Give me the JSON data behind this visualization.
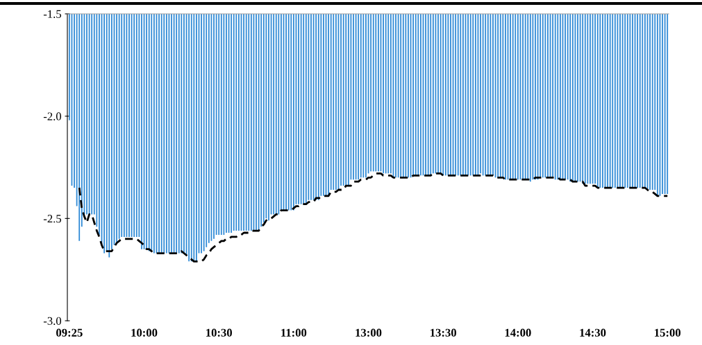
{
  "chart_data": {
    "type": "bar",
    "categories": [
      "09:25",
      null,
      null,
      null,
      null,
      null,
      null,
      null,
      null,
      null,
      null,
      null,
      null,
      null,
      null,
      null,
      null,
      null,
      null,
      null,
      null,
      null,
      null,
      null,
      null,
      null,
      null,
      null,
      null,
      null,
      "10:00",
      null,
      null,
      null,
      null,
      null,
      null,
      null,
      null,
      null,
      null,
      null,
      null,
      null,
      null,
      null,
      null,
      null,
      null,
      null,
      null,
      null,
      null,
      null,
      null,
      null,
      null,
      null,
      null,
      null,
      "10:30",
      null,
      null,
      null,
      null,
      null,
      null,
      null,
      null,
      null,
      null,
      null,
      null,
      null,
      null,
      null,
      null,
      null,
      null,
      null,
      null,
      null,
      null,
      null,
      null,
      null,
      null,
      null,
      null,
      null,
      "11:00",
      null,
      null,
      null,
      null,
      null,
      null,
      null,
      null,
      null,
      null,
      null,
      null,
      null,
      null,
      null,
      null,
      null,
      null,
      null,
      null,
      null,
      null,
      null,
      null,
      null,
      null,
      null,
      null,
      null,
      "13:00",
      null,
      null,
      null,
      null,
      null,
      null,
      null,
      null,
      null,
      null,
      null,
      null,
      null,
      null,
      null,
      null,
      null,
      null,
      null,
      null,
      null,
      null,
      null,
      null,
      null,
      null,
      null,
      null,
      null,
      "13:30",
      null,
      null,
      null,
      null,
      null,
      null,
      null,
      null,
      null,
      null,
      null,
      null,
      null,
      null,
      null,
      null,
      null,
      null,
      null,
      null,
      null,
      null,
      null,
      null,
      null,
      null,
      null,
      null,
      null,
      "14:00",
      null,
      null,
      null,
      null,
      null,
      null,
      null,
      null,
      null,
      null,
      null,
      null,
      null,
      null,
      null,
      null,
      null,
      null,
      null,
      null,
      null,
      null,
      null,
      null,
      null,
      null,
      null,
      null,
      null,
      "14:30",
      null,
      null,
      null,
      null,
      null,
      null,
      null,
      null,
      null,
      null,
      null,
      null,
      null,
      null,
      null,
      null,
      null,
      null,
      null,
      null,
      null,
      null,
      null,
      null,
      null,
      null,
      null,
      null,
      null,
      "15:00"
    ],
    "series": [
      {
        "color": "#2f8ad6",
        "values": [
          -2.02,
          -2.34,
          -2.35,
          -2.44,
          -2.61,
          -2.54,
          -2.48,
          -2.48,
          -2.48,
          -2.48,
          -2.48,
          -2.54,
          -2.58,
          -2.63,
          -2.67,
          -2.66,
          -2.69,
          -2.65,
          -2.63,
          -2.62,
          -2.6,
          -2.59,
          -2.59,
          -2.59,
          -2.59,
          -2.59,
          -2.59,
          -2.59,
          -2.59,
          -2.65,
          -2.65,
          -2.65,
          -2.66,
          -2.66,
          -2.67,
          -2.67,
          -2.67,
          -2.67,
          -2.67,
          -2.67,
          -2.67,
          -2.67,
          -2.67,
          -2.67,
          -2.67,
          -2.67,
          -2.67,
          -2.68,
          -2.71,
          -2.71,
          -2.71,
          -2.71,
          -2.67,
          -2.67,
          -2.66,
          -2.64,
          -2.62,
          -2.61,
          -2.6,
          -2.58,
          -2.58,
          -2.58,
          -2.58,
          -2.57,
          -2.57,
          -2.57,
          -2.56,
          -2.56,
          -2.56,
          -2.56,
          -2.56,
          -2.56,
          -2.56,
          -2.56,
          -2.56,
          -2.56,
          -2.56,
          -2.54,
          -2.52,
          -2.5,
          -2.51,
          -2.48,
          -2.48,
          -2.48,
          -2.48,
          -2.46,
          -2.46,
          -2.46,
          -2.46,
          -2.46,
          -2.46,
          -2.43,
          -2.43,
          -2.43,
          -2.43,
          -2.43,
          -2.41,
          -2.41,
          -2.41,
          -2.41,
          -2.41,
          -2.39,
          -2.39,
          -2.39,
          -2.39,
          -2.36,
          -2.36,
          -2.36,
          -2.36,
          -2.34,
          -2.34,
          -2.34,
          -2.34,
          -2.31,
          -2.31,
          -2.31,
          -2.31,
          -2.3,
          -2.3,
          -2.3,
          -2.28,
          -2.27,
          -2.27,
          -2.27,
          -2.27,
          -2.27,
          -2.28,
          -2.28,
          -2.28,
          -2.28,
          -2.3,
          -2.3,
          -2.3,
          -2.3,
          -2.3,
          -2.3,
          -2.3,
          -2.3,
          -2.29,
          -2.29,
          -2.29,
          -2.29,
          -2.29,
          -2.29,
          -2.29,
          -2.29,
          -2.28,
          -2.28,
          -2.28,
          -2.28,
          -2.29,
          -2.29,
          -2.29,
          -2.29,
          -2.29,
          -2.29,
          -2.29,
          -2.29,
          -2.29,
          -2.29,
          -2.29,
          -2.29,
          -2.29,
          -2.29,
          -2.29,
          -2.28,
          -2.29,
          -2.29,
          -2.29,
          -2.29,
          -2.29,
          -2.3,
          -2.3,
          -2.3,
          -2.3,
          -2.31,
          -2.31,
          -2.31,
          -2.31,
          -2.31,
          -2.31,
          -2.31,
          -2.31,
          -2.31,
          -2.31,
          -2.32,
          -2.31,
          -2.31,
          -2.31,
          -2.3,
          -2.3,
          -2.3,
          -2.3,
          -2.3,
          -2.3,
          -2.31,
          -2.31,
          -2.31,
          -2.31,
          -2.31,
          -2.31,
          -2.32,
          -2.32,
          -2.32,
          -2.32,
          -2.32,
          -2.33,
          -2.33,
          -2.33,
          -2.33,
          -2.33,
          -2.33,
          -2.35,
          -2.35,
          -2.35,
          -2.35,
          -2.35,
          -2.35,
          -2.35,
          -2.35,
          -2.35,
          -2.35,
          -2.35,
          -2.35,
          -2.35,
          -2.35,
          -2.35,
          -2.35,
          -2.35,
          -2.35,
          -2.35,
          -2.35,
          -2.36,
          -2.36,
          -2.36,
          -2.36,
          -2.39,
          -2.39,
          -2.38,
          -2.38,
          -2.38
        ]
      },
      {
        "type": "line",
        "color": "#000000",
        "line_style": "dashed",
        "values": [
          null,
          null,
          null,
          null,
          -2.35,
          -2.45,
          -2.49,
          -2.52,
          -2.48,
          -2.48,
          -2.52,
          -2.56,
          -2.59,
          -2.63,
          -2.66,
          -2.66,
          -2.66,
          -2.66,
          -2.64,
          -2.62,
          -2.61,
          -2.6,
          -2.6,
          -2.6,
          -2.6,
          -2.6,
          -2.6,
          -2.6,
          -2.61,
          -2.62,
          -2.63,
          -2.65,
          -2.65,
          -2.66,
          -2.67,
          -2.67,
          -2.67,
          -2.67,
          -2.67,
          -2.67,
          -2.67,
          -2.67,
          -2.67,
          -2.67,
          -2.67,
          -2.66,
          -2.67,
          -2.68,
          -2.69,
          -2.7,
          -2.71,
          -2.71,
          -2.71,
          -2.71,
          -2.7,
          -2.68,
          -2.67,
          -2.65,
          -2.64,
          -2.63,
          -2.62,
          -2.61,
          -2.61,
          -2.6,
          -2.6,
          -2.59,
          -2.59,
          -2.59,
          -2.58,
          -2.58,
          -2.57,
          -2.57,
          -2.57,
          -2.56,
          -2.56,
          -2.56,
          -2.56,
          -2.54,
          -2.53,
          -2.51,
          -2.5,
          -2.5,
          -2.49,
          -2.48,
          -2.48,
          -2.46,
          -2.46,
          -2.46,
          -2.46,
          -2.46,
          -2.45,
          -2.44,
          -2.44,
          -2.43,
          -2.43,
          -2.43,
          -2.42,
          -2.42,
          -2.42,
          -2.4,
          -2.4,
          -2.4,
          -2.39,
          -2.39,
          -2.39,
          -2.37,
          -2.37,
          -2.37,
          -2.36,
          -2.36,
          -2.36,
          -2.34,
          -2.34,
          -2.34,
          -2.32,
          -2.32,
          -2.32,
          -2.31,
          -2.31,
          -2.31,
          -2.3,
          -2.3,
          -2.29,
          -2.28,
          -2.28,
          -2.28,
          -2.29,
          -2.29,
          -2.29,
          -2.29,
          -2.3,
          -2.3,
          -2.3,
          -2.3,
          -2.3,
          -2.3,
          -2.3,
          -2.3,
          -2.29,
          -2.29,
          -2.29,
          -2.29,
          -2.29,
          -2.29,
          -2.29,
          -2.29,
          -2.28,
          -2.28,
          -2.28,
          -2.28,
          -2.29,
          -2.29,
          -2.29,
          -2.29,
          -2.29,
          -2.29,
          -2.29,
          -2.29,
          -2.29,
          -2.29,
          -2.29,
          -2.29,
          -2.29,
          -2.29,
          -2.29,
          -2.29,
          -2.29,
          -2.29,
          -2.29,
          -2.29,
          -2.29,
          -2.3,
          -2.3,
          -2.3,
          -2.3,
          -2.31,
          -2.31,
          -2.31,
          -2.31,
          -2.31,
          -2.31,
          -2.31,
          -2.31,
          -2.31,
          -2.31,
          -2.31,
          -2.31,
          -2.3,
          -2.3,
          -2.3,
          -2.3,
          -2.3,
          -2.3,
          -2.3,
          -2.3,
          -2.3,
          -2.3,
          -2.31,
          -2.31,
          -2.31,
          -2.31,
          -2.31,
          -2.32,
          -2.32,
          -2.32,
          -2.32,
          -2.32,
          -2.34,
          -2.34,
          -2.34,
          -2.34,
          -2.34,
          -2.35,
          -2.35,
          -2.35,
          -2.35,
          -2.35,
          -2.35,
          -2.35,
          -2.35,
          -2.35,
          -2.35,
          -2.35,
          -2.35,
          -2.35,
          -2.35,
          -2.35,
          -2.35,
          -2.35,
          -2.35,
          -2.35,
          -2.35,
          -2.36,
          -2.37,
          -2.37,
          -2.38,
          -2.39,
          -2.39,
          -2.39,
          -2.39,
          -2.39
        ]
      }
    ],
    "ylim": [
      -3.0,
      -1.5
    ],
    "yticks": [
      {
        "value": -3.0,
        "label": "-3.0"
      },
      {
        "value": -2.5,
        "label": "-2.5"
      },
      {
        "value": -2.0,
        "label": "-2.0"
      },
      {
        "value": -1.5,
        "label": "-1.5"
      }
    ],
    "grid": false,
    "legend": false
  }
}
